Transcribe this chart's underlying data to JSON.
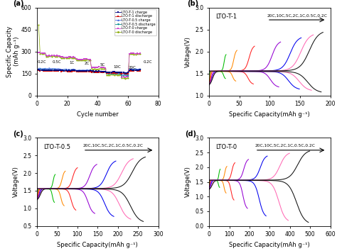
{
  "panel_a": {
    "xlabel": "Cycle number",
    "ylabel": "Specific Capacity\n(mAh g⁻¹)",
    "xlim": [
      0,
      80
    ],
    "ylim": [
      0,
      600
    ],
    "yticks": [
      0,
      150,
      300,
      450,
      600
    ],
    "legend_entries": [
      {
        "label": "LTO-T-1 charge",
        "color": "#000080",
        "marker": "s"
      },
      {
        "label": "LTO-T-1 discharge",
        "color": "#cc0000",
        "marker": "s"
      },
      {
        "label": "LTO-T-0.5 charge",
        "color": "#4169e1",
        "marker": "^"
      },
      {
        "label": "LTO-T-0.5 discharge",
        "color": "#008b8b",
        "marker": "v"
      },
      {
        "label": "LTO-T-0 charge",
        "color": "#cc44cc",
        "marker": "s"
      },
      {
        "label": "LTO-T-0 discharge",
        "color": "#88aa00",
        "marker": "o"
      }
    ],
    "lto1_c_levels": [
      175,
      173,
      171,
      169,
      165,
      160,
      156,
      175
    ],
    "lto1_d_levels": [
      170,
      168,
      166,
      163,
      159,
      154,
      150,
      170
    ],
    "lto05_c_levels": [
      185,
      183,
      179,
      174,
      167,
      157,
      147,
      182
    ],
    "lto05_d_levels": [
      180,
      177,
      173,
      167,
      160,
      149,
      138,
      177
    ],
    "lto0_c_levels": [
      290,
      272,
      262,
      248,
      192,
      152,
      128,
      288
    ],
    "lto0_d_levels": [
      285,
      267,
      257,
      242,
      182,
      142,
      118,
      283
    ],
    "lto0_spike_c": 295,
    "lto0_spike_d": 480,
    "seg_cycles": [
      5,
      10,
      10,
      10,
      10,
      10,
      5,
      8
    ]
  },
  "panel_b": {
    "sample_label": "LTO-T-1",
    "rate_annotation": "20C,10C,5C,2C,1C,0.5C,0.2C",
    "xlabel": "Specific Capacity(mAh g⁻¹)",
    "ylabel": "Voltage(V)",
    "xlim": [
      0,
      200
    ],
    "ylim": [
      1.0,
      3.0
    ],
    "yticks": [
      1.0,
      1.5,
      2.0,
      2.5,
      3.0
    ],
    "xticks": [
      0,
      50,
      100,
      150,
      200
    ],
    "colors": [
      "#00bb00",
      "#ff8800",
      "#ff2020",
      "#9400d3",
      "#0000ee",
      "#ff69b4",
      "#111111"
    ],
    "cap_charge": [
      28,
      46,
      75,
      118,
      152,
      172,
      188
    ],
    "cap_discharge": [
      27,
      44,
      73,
      115,
      149,
      169,
      185
    ],
    "v_max_charge": [
      1.95,
      2.05,
      2.15,
      2.25,
      2.35,
      2.42,
      2.48
    ],
    "v_min_discharge": [
      1.38,
      1.32,
      1.25,
      1.18,
      1.13,
      1.1,
      1.06
    ]
  },
  "panel_c": {
    "sample_label": "LTO-T-0.5",
    "rate_annotation": "20C,10C,5C,2C,1C,0.5C,0.2C",
    "xlabel": "Specific Capacity(mAh g⁻¹)",
    "ylabel": "Voltage(V)",
    "xlim": [
      0,
      300
    ],
    "ylim": [
      0.5,
      3.0
    ],
    "yticks": [
      0.5,
      1.0,
      1.5,
      2.0,
      2.5,
      3.0
    ],
    "xticks": [
      0,
      50,
      100,
      150,
      200,
      250,
      300
    ],
    "colors": [
      "#00bb00",
      "#ff8800",
      "#ff2020",
      "#9400d3",
      "#0000ee",
      "#ff69b4",
      "#111111"
    ],
    "cap_charge": [
      45,
      70,
      100,
      148,
      195,
      238,
      268
    ],
    "cap_discharge": [
      43,
      67,
      96,
      143,
      190,
      232,
      263
    ],
    "v_max_charge": [
      1.98,
      2.08,
      2.18,
      2.28,
      2.38,
      2.45,
      2.5
    ],
    "v_min_discharge": [
      1.15,
      1.05,
      0.92,
      0.82,
      0.73,
      0.65,
      0.58
    ]
  },
  "panel_d": {
    "sample_label": "LTO-T-0",
    "rate_annotation": "20C,10C,5C,2C,1C,0.5C,0.2C",
    "xlabel": "Specific Capacity(mAh g⁻¹)",
    "ylabel": "Voltage(V)",
    "xlim": [
      0,
      600
    ],
    "ylim": [
      0.0,
      3.0
    ],
    "yticks": [
      0.0,
      0.5,
      1.0,
      1.5,
      2.0,
      2.5,
      3.0
    ],
    "xticks": [
      0,
      100,
      200,
      300,
      400,
      500,
      600
    ],
    "colors": [
      "#00bb00",
      "#ff8800",
      "#ff2020",
      "#9400d3",
      "#0000ee",
      "#ff69b4",
      "#111111"
    ],
    "cap_charge": [
      55,
      88,
      128,
      195,
      288,
      398,
      498
    ],
    "cap_discharge": [
      52,
      84,
      123,
      190,
      282,
      392,
      492
    ],
    "v_max_charge": [
      1.95,
      2.05,
      2.18,
      2.3,
      2.42,
      2.52,
      2.6
    ],
    "v_min_discharge": [
      1.3,
      1.1,
      0.85,
      0.55,
      0.28,
      0.12,
      0.05
    ]
  }
}
